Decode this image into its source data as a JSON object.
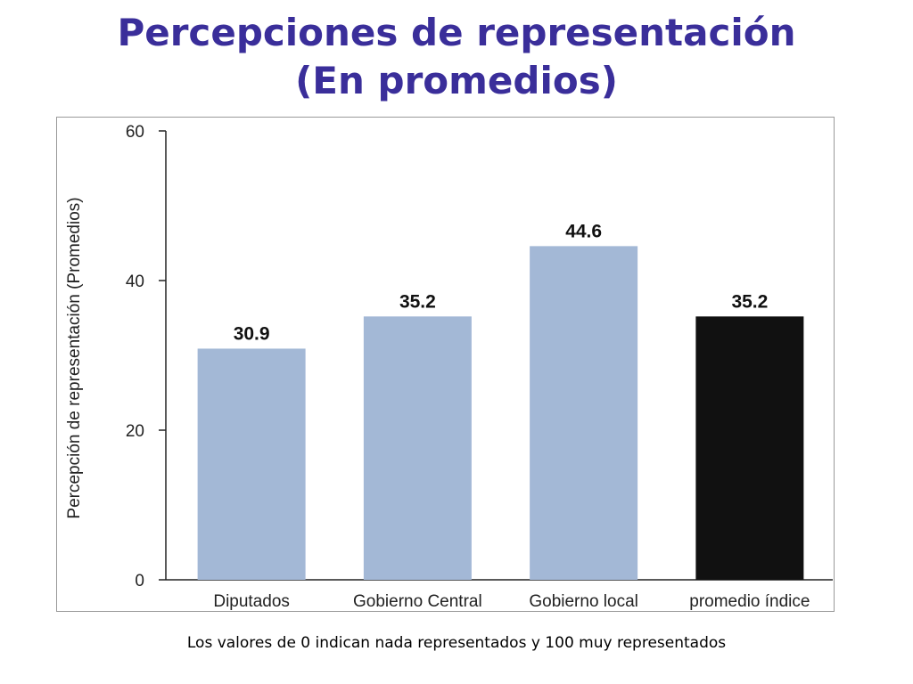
{
  "slide": {
    "title_line1": "Percepciones de representación",
    "title_line2": "(En promedios)",
    "footnote": "Los valores de 0 indican nada representados y 100 muy representados"
  },
  "colors": {
    "title": "#3a2e9a",
    "bar_default": "#a3b8d6",
    "bar_highlight": "#111111"
  },
  "chart_data": {
    "type": "bar",
    "title": "",
    "xlabel": "",
    "ylabel": "Percepción de representación (Promedios)",
    "ylim": [
      0,
      60
    ],
    "yticks": [
      0,
      20,
      40,
      60
    ],
    "categories": [
      "Diputados",
      "Gobierno Central",
      "Gobierno local",
      "promedio índice"
    ],
    "values": [
      30.9,
      35.2,
      44.6,
      35.2
    ],
    "data_labels": [
      "30.9",
      "35.2",
      "44.6",
      "35.2"
    ],
    "highlight_index": 3,
    "grid": false,
    "legend": "none"
  }
}
